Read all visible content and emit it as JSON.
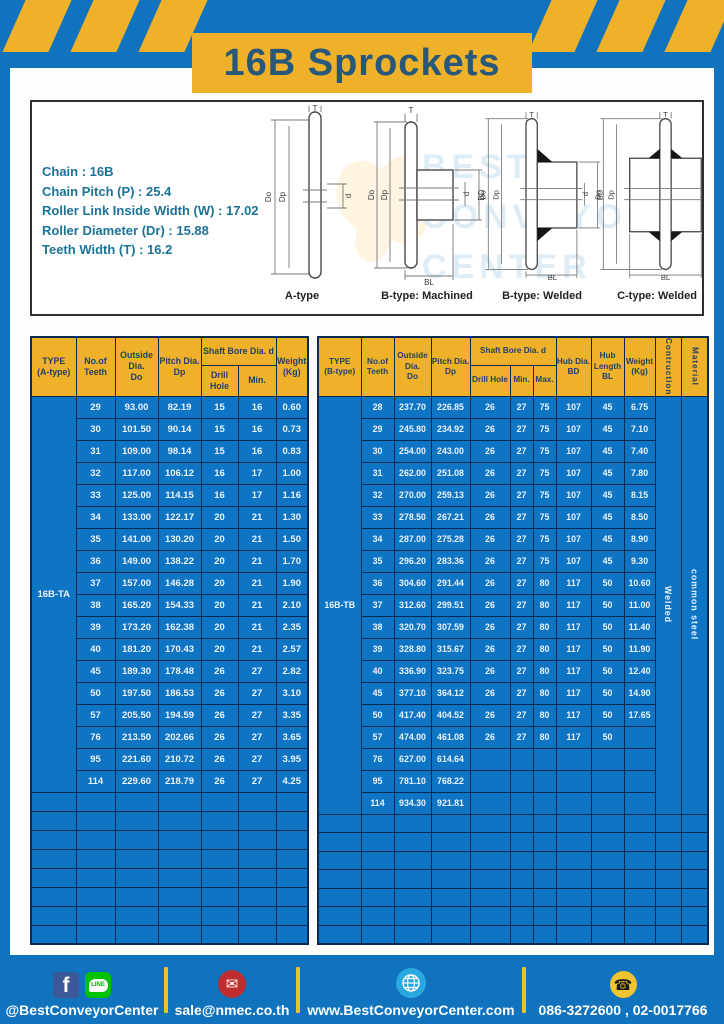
{
  "title": "16B Sprockets",
  "colors": {
    "page_blue": "#1173bd",
    "accent_yellow": "#efb02a",
    "table_cell_blue": "#0e74c4",
    "table_border_navy": "#0b2a52",
    "title_text": "#27587a",
    "spec_text": "#1b7397"
  },
  "specs": {
    "lines": [
      "Chain : 16B",
      "Chain Pitch (P) : 25.4",
      "Roller Link Inside Width (W) : 17.02",
      "Roller Diameter (Dr) : 15.88",
      "Teeth Width (T) : 16.2"
    ]
  },
  "diagrams": {
    "captions": [
      "A-type",
      "B-type: Machined",
      "B-type: Welded",
      "C-type: Welded"
    ],
    "labels": {
      "t": "T",
      "dout": "Do",
      "dp": "Dp",
      "d": "d",
      "bd": "BD",
      "bl": "BL"
    },
    "watermark": [
      "BEST",
      "CONVEYOR",
      "CENTER"
    ]
  },
  "table_a": {
    "header": {
      "type": "TYPE\n(A-type)",
      "teeth": "No.of\nTeeth",
      "outside": "Outside\nDia.\nDo",
      "pitch": "Pitch Dia.\nDp",
      "shaft": "Shaft Bore Dia. d",
      "drill": "Drill Hole",
      "min": "Min.",
      "weight": "Weight\n(Kg)"
    },
    "type_label": "16B-TA",
    "rows": [
      [
        "29",
        "93.00",
        "82.19",
        "15",
        "16",
        "0.60"
      ],
      [
        "30",
        "101.50",
        "90.14",
        "15",
        "16",
        "0.73"
      ],
      [
        "31",
        "109.00",
        "98.14",
        "15",
        "16",
        "0.83"
      ],
      [
        "32",
        "117.00",
        "106.12",
        "16",
        "17",
        "1.00"
      ],
      [
        "33",
        "125.00",
        "114.15",
        "16",
        "17",
        "1.16"
      ],
      [
        "34",
        "133.00",
        "122.17",
        "20",
        "21",
        "1.30"
      ],
      [
        "35",
        "141.00",
        "130.20",
        "20",
        "21",
        "1.50"
      ],
      [
        "36",
        "149.00",
        "138.22",
        "20",
        "21",
        "1.70"
      ],
      [
        "37",
        "157.00",
        "146.28",
        "20",
        "21",
        "1.90"
      ],
      [
        "38",
        "165.20",
        "154.33",
        "20",
        "21",
        "2.10"
      ],
      [
        "39",
        "173.20",
        "162.38",
        "20",
        "21",
        "2.35"
      ],
      [
        "40",
        "181.20",
        "170.43",
        "20",
        "21",
        "2.57"
      ],
      [
        "45",
        "189.30",
        "178.48",
        "26",
        "27",
        "2.82"
      ],
      [
        "50",
        "197.50",
        "186.53",
        "26",
        "27",
        "3.10"
      ],
      [
        "57",
        "205.50",
        "194.59",
        "26",
        "27",
        "3.35"
      ],
      [
        "76",
        "213.50",
        "202.66",
        "26",
        "27",
        "3.65"
      ],
      [
        "95",
        "221.60",
        "210.72",
        "26",
        "27",
        "3.95"
      ],
      [
        "114",
        "229.60",
        "218.79",
        "26",
        "27",
        "4.25"
      ]
    ],
    "empty_rows": 8
  },
  "table_b": {
    "header": {
      "type": "TYPE\n(B-type)",
      "teeth": "No.of\nTeeth",
      "outside": "Outside\nDia.\nDo",
      "pitch": "Pitch Dia.\nDp",
      "shaft": "Shaft Bore Dia. d",
      "drill": "Drill Hole",
      "min": "Min.",
      "max": "Max.",
      "hub_dia": "Hub Dia.\nBD",
      "hub_len": "Hub\nLength\nBL",
      "weight": "Weight\n(Kg)",
      "contruction": "Contruction",
      "material": "Material"
    },
    "type_label": "16B-TB",
    "contruction": "Welded",
    "material": "common steel",
    "rows": [
      [
        "28",
        "237.70",
        "226.85",
        "26",
        "27",
        "75",
        "107",
        "45",
        "6.75"
      ],
      [
        "29",
        "245.80",
        "234.92",
        "26",
        "27",
        "75",
        "107",
        "45",
        "7.10"
      ],
      [
        "30",
        "254.00",
        "243.00",
        "26",
        "27",
        "75",
        "107",
        "45",
        "7.40"
      ],
      [
        "31",
        "262.00",
        "251.08",
        "26",
        "27",
        "75",
        "107",
        "45",
        "7.80"
      ],
      [
        "32",
        "270.00",
        "259.13",
        "26",
        "27",
        "75",
        "107",
        "45",
        "8.15"
      ],
      [
        "33",
        "278.50",
        "267.21",
        "26",
        "27",
        "75",
        "107",
        "45",
        "8.50"
      ],
      [
        "34",
        "287.00",
        "275.28",
        "26",
        "27",
        "75",
        "107",
        "45",
        "8.90"
      ],
      [
        "35",
        "296.20",
        "283.36",
        "26",
        "27",
        "75",
        "107",
        "45",
        "9.30"
      ],
      [
        "36",
        "304.60",
        "291.44",
        "26",
        "27",
        "80",
        "117",
        "50",
        "10.60"
      ],
      [
        "37",
        "312.60",
        "299.51",
        "26",
        "27",
        "80",
        "117",
        "50",
        "11.00"
      ],
      [
        "38",
        "320.70",
        "307.59",
        "26",
        "27",
        "80",
        "117",
        "50",
        "11.40"
      ],
      [
        "39",
        "328.80",
        "315.67",
        "26",
        "27",
        "80",
        "117",
        "50",
        "11.90"
      ],
      [
        "40",
        "336.90",
        "323.75",
        "26",
        "27",
        "80",
        "117",
        "50",
        "12.40"
      ],
      [
        "45",
        "377.10",
        "364.12",
        "26",
        "27",
        "80",
        "117",
        "50",
        "14.90"
      ],
      [
        "50",
        "417.40",
        "404.52",
        "26",
        "27",
        "80",
        "117",
        "50",
        "17.65"
      ],
      [
        "57",
        "474.00",
        "461.08",
        "26",
        "27",
        "80",
        "117",
        "50",
        ""
      ],
      [
        "76",
        "627.00",
        "614.64",
        "",
        "",
        "",
        "",
        "",
        ""
      ],
      [
        "95",
        "781.10",
        "768.22",
        "",
        "",
        "",
        "",
        "",
        ""
      ],
      [
        "114",
        "934.30",
        "921.81",
        "",
        "",
        "",
        "",
        "",
        ""
      ]
    ],
    "empty_rows": 7
  },
  "footer": {
    "facebook_glyph": "f",
    "line_label": "LINE",
    "mail_glyph": "✉",
    "phone_glyph": "☎",
    "social": "@BestConveyorCenter",
    "email": "sale@nmec.co.th",
    "website": "www.BestConveyorCenter.com",
    "phone": "086-3272600 , 02-0017766"
  }
}
